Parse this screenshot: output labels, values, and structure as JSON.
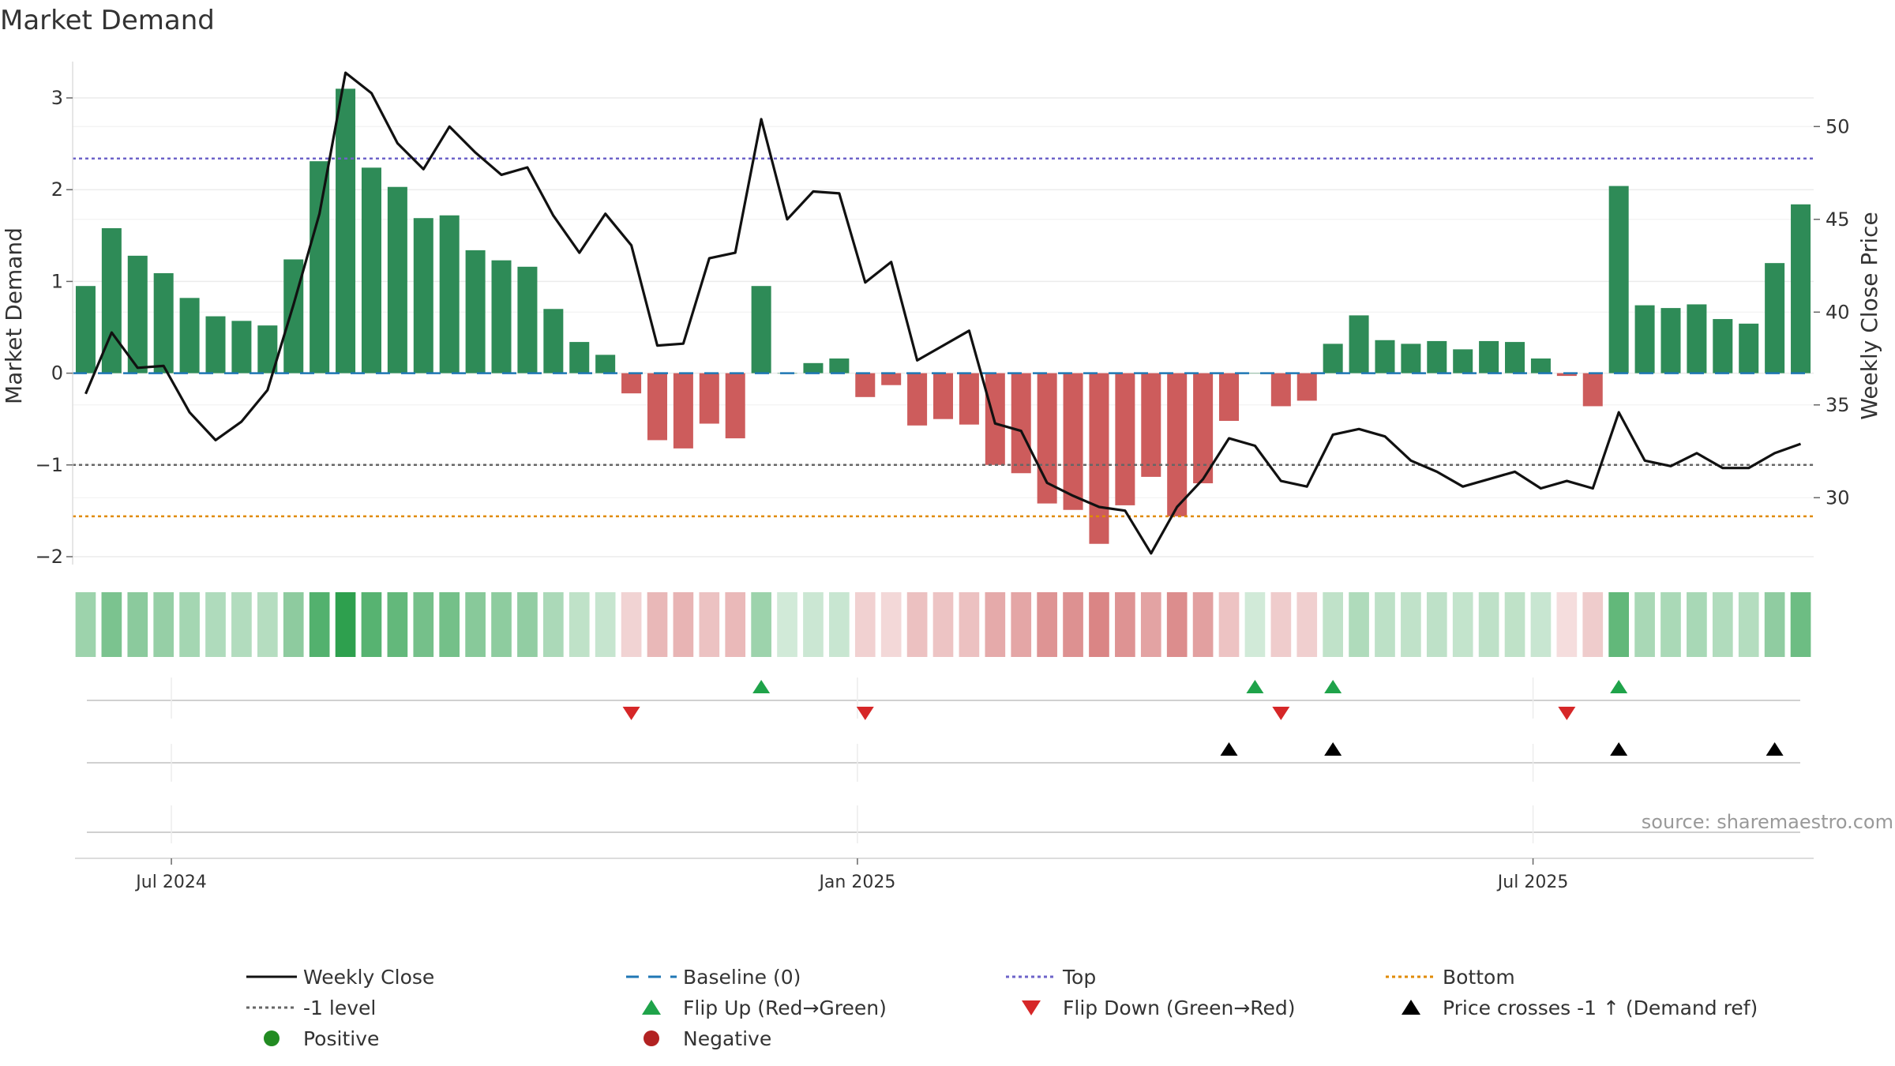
{
  "chart_data": {
    "type": "bar",
    "title": "Market Demand",
    "ylabel": "Market Demand",
    "y2label": "Weekly Close Price",
    "ylim": [
      -2.2,
      3.3
    ],
    "y2lim": [
      25.8,
      53.5
    ],
    "yticks": [
      {
        "v": 3,
        "label": "3"
      },
      {
        "v": 2,
        "label": "2"
      },
      {
        "v": 1,
        "label": "1"
      },
      {
        "v": 0,
        "label": "0"
      },
      {
        "v": -1,
        "label": "−1"
      },
      {
        "v": -2,
        "label": "−2"
      }
    ],
    "y2ticks": [
      {
        "v": 50,
        "label": "50"
      },
      {
        "v": 45,
        "label": "45"
      },
      {
        "v": 40,
        "label": "40"
      },
      {
        "v": 35,
        "label": "35"
      },
      {
        "v": 30,
        "label": "30"
      }
    ],
    "xticks": [
      {
        "i": 3.3,
        "label": "Jul 2024"
      },
      {
        "i": 29.7,
        "label": "Jan 2025"
      },
      {
        "i": 55.7,
        "label": "Jul 2025"
      }
    ],
    "demand": [
      0.95,
      1.58,
      1.28,
      1.09,
      0.82,
      0.62,
      0.57,
      0.52,
      1.24,
      2.31,
      3.1,
      2.24,
      2.03,
      1.69,
      1.72,
      1.34,
      1.23,
      1.16,
      0.7,
      0.34,
      0.2,
      -0.22,
      -0.73,
      -0.82,
      -0.55,
      -0.71,
      0.95,
      0.0,
      0.11,
      0.16,
      -0.26,
      -0.13,
      -0.57,
      -0.5,
      -0.56,
      -1.0,
      -1.09,
      -1.42,
      -1.49,
      -1.86,
      -1.44,
      -1.13,
      -1.56,
      -1.2,
      -0.52,
      0.0,
      -0.36,
      -0.3,
      0.32,
      0.63,
      0.36,
      0.32,
      0.35,
      0.26,
      0.35,
      0.34,
      0.16,
      -0.03,
      -0.36,
      2.04,
      0.74,
      0.71,
      0.75,
      0.59,
      0.54,
      1.2,
      1.84
    ],
    "weekly_close": [
      35.6,
      38.9,
      37.0,
      37.1,
      34.6,
      33.1,
      34.1,
      35.8,
      40.4,
      45.3,
      52.9,
      51.8,
      49.1,
      47.7,
      50.0,
      48.6,
      47.4,
      47.8,
      45.2,
      43.2,
      45.3,
      43.6,
      38.2,
      38.3,
      42.9,
      43.2,
      50.4,
      45.0,
      46.5,
      46.4,
      41.6,
      42.7,
      37.4,
      38.2,
      39.0,
      34.0,
      33.6,
      30.8,
      30.1,
      29.5,
      29.3,
      27.0,
      29.5,
      31.0,
      33.2,
      32.8,
      30.9,
      30.6,
      33.4,
      33.7,
      33.3,
      32.0,
      31.4,
      30.6,
      31.0,
      31.4,
      30.5,
      30.9,
      30.5,
      34.6,
      32.0,
      31.7,
      32.4,
      31.6,
      31.6,
      32.4,
      32.9
    ],
    "lines": {
      "top": 2.34,
      "bottom": -1.56,
      "minus_one": -1,
      "baseline": 0,
      "colors": {
        "close": "#111111",
        "baseline": "#1f77b4",
        "top": "#6d63c9",
        "bottom": "#e08a00",
        "minus_one": "#666666"
      }
    },
    "bar_colors": {
      "positive": "#2e8b57",
      "negative": "#cd5c5c"
    },
    "flip_up_indices": [
      26,
      45,
      48,
      59
    ],
    "flip_down_indices": [
      21,
      30,
      46,
      57
    ],
    "price_cross_indices": [
      44,
      48,
      59,
      65
    ],
    "marker_colors": {
      "flip_up": "#1fa34a",
      "flip_down": "#d62728",
      "cross": "#000000"
    },
    "source_text": "source: sharemaestro.com",
    "legend": [
      {
        "label": "Weekly Close",
        "kind": "line",
        "color": "#111111"
      },
      {
        "label": "Baseline (0)",
        "kind": "dash",
        "color": "#1f77b4"
      },
      {
        "label": "Top",
        "kind": "dot",
        "color": "#6d63c9"
      },
      {
        "label": "Bottom",
        "kind": "dot",
        "color": "#e08a00"
      },
      {
        "label": "-1 level",
        "kind": "dot",
        "color": "#666666"
      },
      {
        "label": "Flip Up (Red→Green)",
        "kind": "tri-up",
        "color": "#1fa34a"
      },
      {
        "label": "Flip Down (Green→Red)",
        "kind": "tri-down",
        "color": "#d62728"
      },
      {
        "label": "Price crosses -1 ↑ (Demand ref)",
        "kind": "tri-up",
        "color": "#000000"
      },
      {
        "label": "Positive",
        "kind": "circle",
        "color": "#228b22"
      },
      {
        "label": "Negative",
        "kind": "circle",
        "color": "#b22222"
      }
    ]
  }
}
